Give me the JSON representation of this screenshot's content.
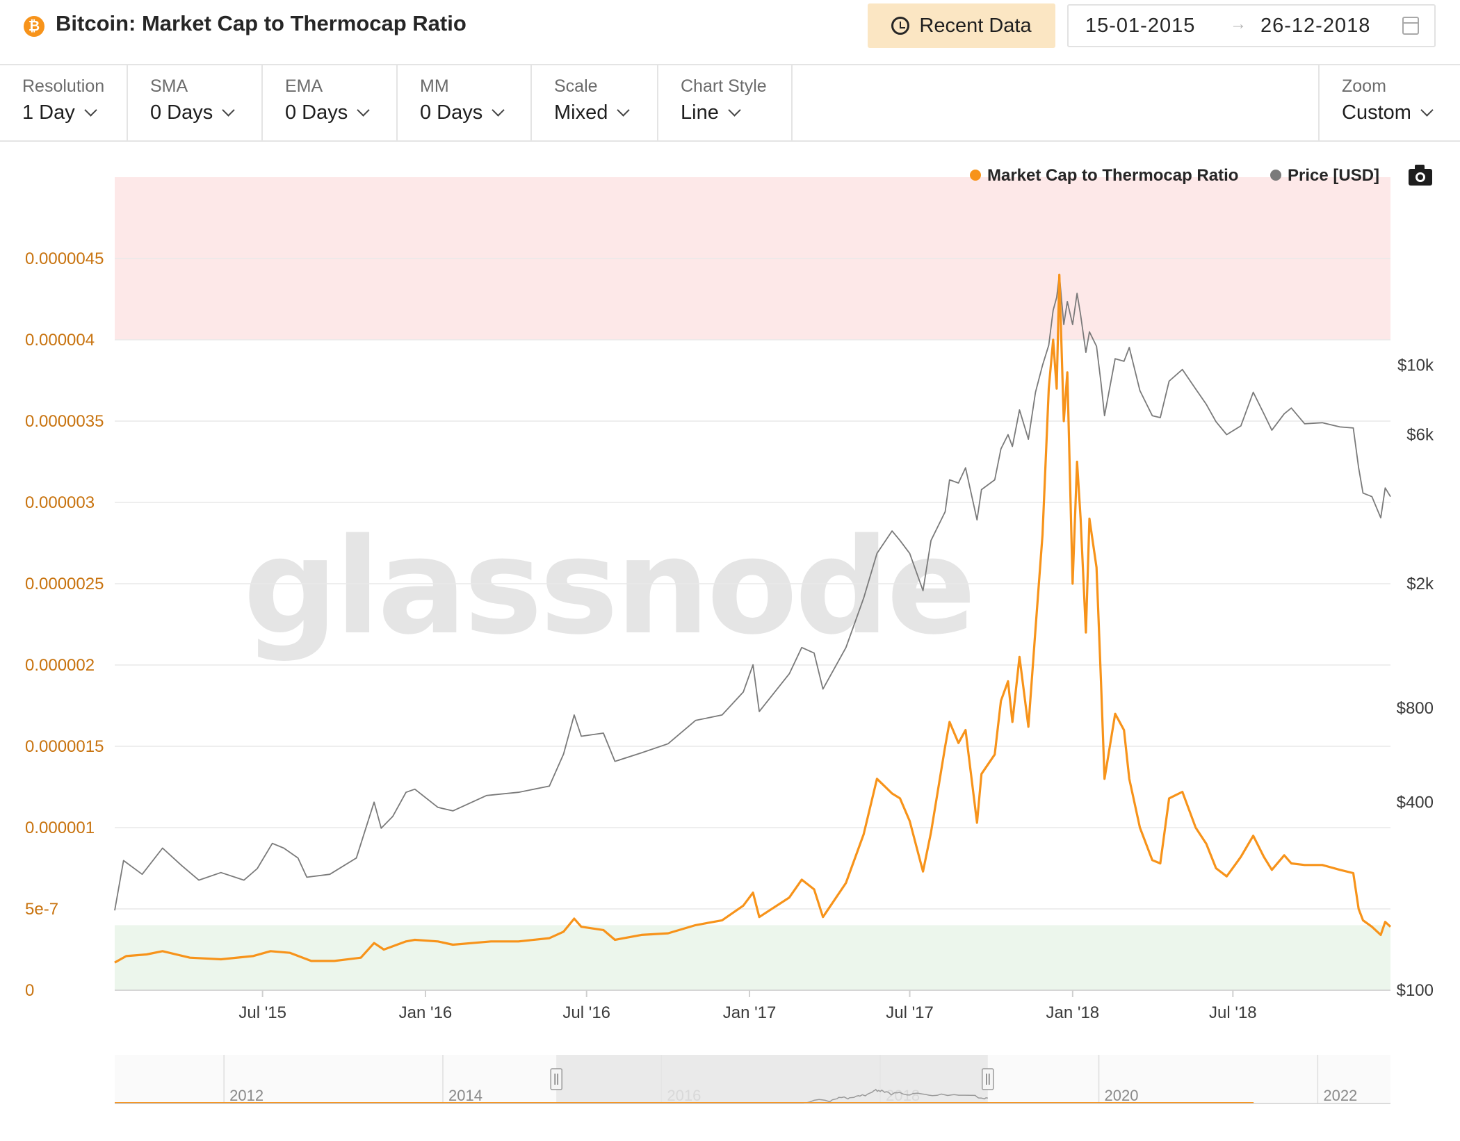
{
  "header": {
    "title": "Bitcoin: Market Cap to Thermocap Ratio",
    "coin_icon": "bitcoin-icon",
    "recent_button": "Recent Data",
    "date_start": "15-01-2015",
    "date_arrow": "→",
    "date_end": "26-12-2018"
  },
  "controls": [
    {
      "label": "Resolution",
      "value": "1 Day"
    },
    {
      "label": "SMA",
      "value": "0 Days"
    },
    {
      "label": "EMA",
      "value": "0 Days"
    },
    {
      "label": "MM",
      "value": "0 Days"
    },
    {
      "label": "Scale",
      "value": "Mixed"
    },
    {
      "label": "Chart Style",
      "value": "Line"
    }
  ],
  "zoom": {
    "label": "Zoom",
    "value": "Custom"
  },
  "watermark": "glassnode",
  "colors": {
    "ratio": "#f7931a",
    "price": "#7a7a7a",
    "overvalued_band": "#fde8e8",
    "undervalued_band": "#ecf6ec",
    "left_axis": "#c8730f"
  },
  "chart_data": {
    "type": "line",
    "title": "Bitcoin: Market Cap to Thermocap Ratio",
    "x_range": [
      "2015-01-15",
      "2018-12-26"
    ],
    "x_ticks": [
      "Jul '15",
      "Jan '16",
      "Jul '16",
      "Jan '17",
      "Jul '17",
      "Jan '18",
      "Jul '18"
    ],
    "legend": {
      "placement": "top-right"
    },
    "y_left": {
      "scale": "linear",
      "range": [
        0,
        5e-06
      ],
      "ticks": [
        {
          "label": "0",
          "value": 0
        },
        {
          "label": "5e-7",
          "value": 5e-07
        },
        {
          "label": "0.000001",
          "value": 1e-06
        },
        {
          "label": "0.0000015",
          "value": 1.5e-06
        },
        {
          "label": "0.000002",
          "value": 2e-06
        },
        {
          "label": "0.0000025",
          "value": 2.5e-06
        },
        {
          "label": "0.000003",
          "value": 3e-06
        },
        {
          "label": "0.0000035",
          "value": 3.5e-06
        },
        {
          "label": "0.000004",
          "value": 4e-06
        },
        {
          "label": "0.0000045",
          "value": 4.5e-06
        }
      ]
    },
    "y_right": {
      "scale": "log",
      "range": [
        100,
        40000
      ],
      "ticks": [
        {
          "label": "$100",
          "value": 100
        },
        {
          "label": "$400",
          "value": 400
        },
        {
          "label": "$800",
          "value": 800
        },
        {
          "label": "$2k",
          "value": 2000
        },
        {
          "label": "$6k",
          "value": 6000
        },
        {
          "label": "$10k",
          "value": 10000
        }
      ]
    },
    "bands": [
      {
        "name": "overvalued",
        "from": 4e-06,
        "to": 5e-06
      },
      {
        "name": "undervalued",
        "from": 0,
        "to": 4e-07
      }
    ],
    "series": [
      {
        "name": "Market Cap to Thermocap Ratio",
        "axis": "left",
        "color": "#f7931a",
        "points": [
          [
            "2015-01-15",
            1.7e-07
          ],
          [
            "2015-01-28",
            2.1e-07
          ],
          [
            "2015-02-20",
            2.2e-07
          ],
          [
            "2015-03-10",
            2.4e-07
          ],
          [
            "2015-04-10",
            2e-07
          ],
          [
            "2015-05-15",
            1.9e-07
          ],
          [
            "2015-06-20",
            2.1e-07
          ],
          [
            "2015-07-10",
            2.4e-07
          ],
          [
            "2015-08-01",
            2.3e-07
          ],
          [
            "2015-08-25",
            1.8e-07
          ],
          [
            "2015-09-20",
            1.8e-07
          ],
          [
            "2015-10-20",
            2e-07
          ],
          [
            "2015-11-04",
            2.9e-07
          ],
          [
            "2015-11-15",
            2.5e-07
          ],
          [
            "2015-12-10",
            3e-07
          ],
          [
            "2015-12-20",
            3.1e-07
          ],
          [
            "2016-01-15",
            3e-07
          ],
          [
            "2016-02-01",
            2.8e-07
          ],
          [
            "2016-03-15",
            3e-07
          ],
          [
            "2016-04-15",
            3e-07
          ],
          [
            "2016-05-20",
            3.2e-07
          ],
          [
            "2016-06-05",
            3.6e-07
          ],
          [
            "2016-06-17",
            4.4e-07
          ],
          [
            "2016-06-25",
            3.9e-07
          ],
          [
            "2016-07-20",
            3.7e-07
          ],
          [
            "2016-08-02",
            3.1e-07
          ],
          [
            "2016-09-01",
            3.4e-07
          ],
          [
            "2016-10-01",
            3.5e-07
          ],
          [
            "2016-11-01",
            4e-07
          ],
          [
            "2016-12-01",
            4.3e-07
          ],
          [
            "2016-12-25",
            5.2e-07
          ],
          [
            "2017-01-05",
            6e-07
          ],
          [
            "2017-01-12",
            4.5e-07
          ],
          [
            "2017-02-15",
            5.7e-07
          ],
          [
            "2017-03-01",
            6.8e-07
          ],
          [
            "2017-03-15",
            6.2e-07
          ],
          [
            "2017-03-25",
            4.5e-07
          ],
          [
            "2017-04-20",
            6.6e-07
          ],
          [
            "2017-05-10",
            9.6e-07
          ],
          [
            "2017-05-25",
            1.3e-06
          ],
          [
            "2017-06-11",
            1.21e-06
          ],
          [
            "2017-06-20",
            1.18e-06
          ],
          [
            "2017-07-01",
            1.04e-06
          ],
          [
            "2017-07-16",
            7.3e-07
          ],
          [
            "2017-07-25",
            9.7e-07
          ],
          [
            "2017-08-10",
            1.5e-06
          ],
          [
            "2017-08-15",
            1.65e-06
          ],
          [
            "2017-08-25",
            1.52e-06
          ],
          [
            "2017-09-02",
            1.6e-06
          ],
          [
            "2017-09-15",
            1.03e-06
          ],
          [
            "2017-09-20",
            1.33e-06
          ],
          [
            "2017-10-05",
            1.45e-06
          ],
          [
            "2017-10-12",
            1.78e-06
          ],
          [
            "2017-10-20",
            1.9e-06
          ],
          [
            "2017-10-25",
            1.65e-06
          ],
          [
            "2017-11-02",
            2.05e-06
          ],
          [
            "2017-11-12",
            1.62e-06
          ],
          [
            "2017-11-20",
            2.22e-06
          ],
          [
            "2017-11-28",
            2.8e-06
          ],
          [
            "2017-12-05",
            3.7e-06
          ],
          [
            "2017-12-10",
            4e-06
          ],
          [
            "2017-12-14",
            3.7e-06
          ],
          [
            "2017-12-17",
            4.4e-06
          ],
          [
            "2017-12-22",
            3.5e-06
          ],
          [
            "2017-12-26",
            3.8e-06
          ],
          [
            "2018-01-01",
            2.5e-06
          ],
          [
            "2018-01-06",
            3.25e-06
          ],
          [
            "2018-01-10",
            2.9e-06
          ],
          [
            "2018-01-16",
            2.2e-06
          ],
          [
            "2018-01-20",
            2.9e-06
          ],
          [
            "2018-01-28",
            2.6e-06
          ],
          [
            "2018-02-02",
            1.9e-06
          ],
          [
            "2018-02-06",
            1.3e-06
          ],
          [
            "2018-02-18",
            1.7e-06
          ],
          [
            "2018-02-28",
            1.6e-06
          ],
          [
            "2018-03-06",
            1.3e-06
          ],
          [
            "2018-03-18",
            1e-06
          ],
          [
            "2018-04-01",
            8e-07
          ],
          [
            "2018-04-10",
            7.8e-07
          ],
          [
            "2018-04-20",
            1.18e-06
          ],
          [
            "2018-05-05",
            1.22e-06
          ],
          [
            "2018-05-20",
            1e-06
          ],
          [
            "2018-06-01",
            9e-07
          ],
          [
            "2018-06-12",
            7.5e-07
          ],
          [
            "2018-06-24",
            7e-07
          ],
          [
            "2018-07-10",
            8.2e-07
          ],
          [
            "2018-07-24",
            9.5e-07
          ],
          [
            "2018-08-05",
            8.2e-07
          ],
          [
            "2018-08-14",
            7.4e-07
          ],
          [
            "2018-08-28",
            8.3e-07
          ],
          [
            "2018-09-05",
            7.8e-07
          ],
          [
            "2018-09-20",
            7.7e-07
          ],
          [
            "2018-10-10",
            7.7e-07
          ],
          [
            "2018-10-30",
            7.4e-07
          ],
          [
            "2018-11-14",
            7.2e-07
          ],
          [
            "2018-11-20",
            5e-07
          ],
          [
            "2018-11-25",
            4.3e-07
          ],
          [
            "2018-12-05",
            3.9e-07
          ],
          [
            "2018-12-15",
            3.4e-07
          ],
          [
            "2018-12-20",
            4.2e-07
          ],
          [
            "2018-12-26",
            3.9e-07
          ]
        ]
      },
      {
        "name": "Price [USD]",
        "axis": "right",
        "color": "#7a7a7a",
        "points": [
          [
            "2015-01-15",
            180
          ],
          [
            "2015-01-25",
            260
          ],
          [
            "2015-02-15",
            235
          ],
          [
            "2015-03-10",
            285
          ],
          [
            "2015-04-01",
            250
          ],
          [
            "2015-04-20",
            225
          ],
          [
            "2015-05-15",
            238
          ],
          [
            "2015-06-10",
            225
          ],
          [
            "2015-06-25",
            245
          ],
          [
            "2015-07-12",
            295
          ],
          [
            "2015-07-25",
            285
          ],
          [
            "2015-08-10",
            265
          ],
          [
            "2015-08-20",
            230
          ],
          [
            "2015-09-15",
            235
          ],
          [
            "2015-10-15",
            265
          ],
          [
            "2015-11-04",
            400
          ],
          [
            "2015-11-12",
            330
          ],
          [
            "2015-11-25",
            360
          ],
          [
            "2015-12-10",
            430
          ],
          [
            "2015-12-20",
            440
          ],
          [
            "2016-01-15",
            385
          ],
          [
            "2016-02-01",
            375
          ],
          [
            "2016-03-10",
            420
          ],
          [
            "2016-04-15",
            430
          ],
          [
            "2016-05-20",
            450
          ],
          [
            "2016-06-05",
            570
          ],
          [
            "2016-06-17",
            760
          ],
          [
            "2016-06-25",
            650
          ],
          [
            "2016-07-20",
            665
          ],
          [
            "2016-08-02",
            540
          ],
          [
            "2016-09-01",
            575
          ],
          [
            "2016-10-01",
            615
          ],
          [
            "2016-11-01",
            730
          ],
          [
            "2016-12-01",
            760
          ],
          [
            "2016-12-25",
            900
          ],
          [
            "2017-01-05",
            1100
          ],
          [
            "2017-01-12",
            780
          ],
          [
            "2017-02-15",
            1030
          ],
          [
            "2017-03-01",
            1250
          ],
          [
            "2017-03-15",
            1200
          ],
          [
            "2017-03-25",
            920
          ],
          [
            "2017-04-20",
            1250
          ],
          [
            "2017-05-10",
            1800
          ],
          [
            "2017-05-25",
            2500
          ],
          [
            "2017-06-11",
            2950
          ],
          [
            "2017-06-20",
            2750
          ],
          [
            "2017-07-01",
            2500
          ],
          [
            "2017-07-16",
            1900
          ],
          [
            "2017-07-25",
            2750
          ],
          [
            "2017-08-10",
            3400
          ],
          [
            "2017-08-15",
            4300
          ],
          [
            "2017-08-25",
            4200
          ],
          [
            "2017-09-02",
            4700
          ],
          [
            "2017-09-15",
            3200
          ],
          [
            "2017-09-20",
            4000
          ],
          [
            "2017-10-05",
            4300
          ],
          [
            "2017-10-12",
            5400
          ],
          [
            "2017-10-20",
            6000
          ],
          [
            "2017-10-25",
            5500
          ],
          [
            "2017-11-02",
            7200
          ],
          [
            "2017-11-12",
            5800
          ],
          [
            "2017-11-20",
            8200
          ],
          [
            "2017-11-28",
            10000
          ],
          [
            "2017-12-05",
            11600
          ],
          [
            "2017-12-10",
            15000
          ],
          [
            "2017-12-14",
            16500
          ],
          [
            "2017-12-17",
            19500
          ],
          [
            "2017-12-22",
            13500
          ],
          [
            "2017-12-26",
            16000
          ],
          [
            "2018-01-01",
            13500
          ],
          [
            "2018-01-06",
            17000
          ],
          [
            "2018-01-10",
            14500
          ],
          [
            "2018-01-16",
            11000
          ],
          [
            "2018-01-20",
            12800
          ],
          [
            "2018-01-28",
            11500
          ],
          [
            "2018-02-02",
            8800
          ],
          [
            "2018-02-06",
            6900
          ],
          [
            "2018-02-18",
            10500
          ],
          [
            "2018-02-28",
            10300
          ],
          [
            "2018-03-06",
            11400
          ],
          [
            "2018-03-18",
            8300
          ],
          [
            "2018-04-01",
            6900
          ],
          [
            "2018-04-10",
            6800
          ],
          [
            "2018-04-20",
            8900
          ],
          [
            "2018-05-05",
            9700
          ],
          [
            "2018-05-20",
            8400
          ],
          [
            "2018-06-01",
            7500
          ],
          [
            "2018-06-12",
            6600
          ],
          [
            "2018-06-24",
            6000
          ],
          [
            "2018-07-10",
            6400
          ],
          [
            "2018-07-24",
            8200
          ],
          [
            "2018-08-05",
            7000
          ],
          [
            "2018-08-14",
            6200
          ],
          [
            "2018-08-28",
            7000
          ],
          [
            "2018-09-05",
            7300
          ],
          [
            "2018-09-20",
            6500
          ],
          [
            "2018-10-10",
            6550
          ],
          [
            "2018-10-30",
            6350
          ],
          [
            "2018-11-14",
            6300
          ],
          [
            "2018-11-20",
            4700
          ],
          [
            "2018-11-25",
            3900
          ],
          [
            "2018-12-05",
            3800
          ],
          [
            "2018-12-15",
            3250
          ],
          [
            "2018-12-20",
            4050
          ],
          [
            "2018-12-26",
            3800
          ]
        ]
      }
    ],
    "navigator": {
      "x_ticks": [
        "2012",
        "2014",
        "2016",
        "2018",
        "2020",
        "2022"
      ],
      "selection": [
        "2015-01-15",
        "2018-12-26"
      ]
    }
  }
}
